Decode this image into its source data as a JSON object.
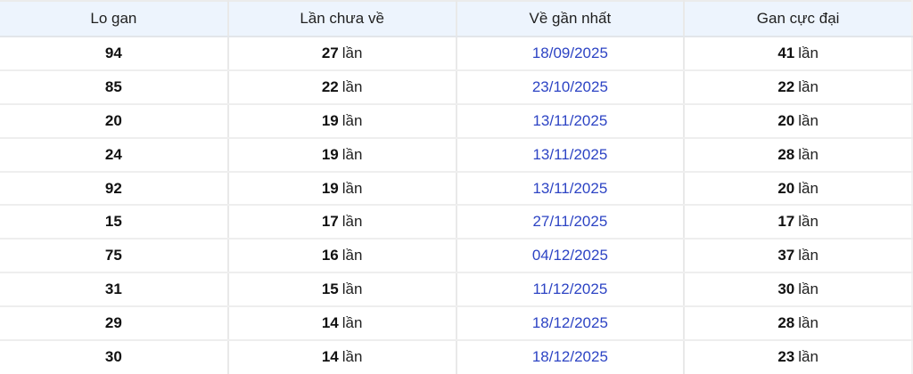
{
  "colors": {
    "header_bg": "#edf4fd",
    "date_link_blue": "#2d44c4",
    "row_border": "#eeeeee",
    "column_border": "#e9e9e9",
    "text": "#1f1f1f"
  },
  "table": {
    "unit": "lần",
    "columns": [
      "Lo gan",
      "Lần chưa về",
      "Về gần nhất",
      "Gan cực đại"
    ],
    "rows": [
      {
        "number": "94",
        "missed": "27",
        "last_seen": "18/09/2025",
        "max_gap": "41"
      },
      {
        "number": "85",
        "missed": "22",
        "last_seen": "23/10/2025",
        "max_gap": "22"
      },
      {
        "number": "20",
        "missed": "19",
        "last_seen": "13/11/2025",
        "max_gap": "20"
      },
      {
        "number": "24",
        "missed": "19",
        "last_seen": "13/11/2025",
        "max_gap": "28"
      },
      {
        "number": "92",
        "missed": "19",
        "last_seen": "13/11/2025",
        "max_gap": "20"
      },
      {
        "number": "15",
        "missed": "17",
        "last_seen": "27/11/2025",
        "max_gap": "17"
      },
      {
        "number": "75",
        "missed": "16",
        "last_seen": "04/12/2025",
        "max_gap": "37"
      },
      {
        "number": "31",
        "missed": "15",
        "last_seen": "11/12/2025",
        "max_gap": "30"
      },
      {
        "number": "29",
        "missed": "14",
        "last_seen": "18/12/2025",
        "max_gap": "28"
      },
      {
        "number": "30",
        "missed": "14",
        "last_seen": "18/12/2025",
        "max_gap": "23"
      }
    ]
  }
}
